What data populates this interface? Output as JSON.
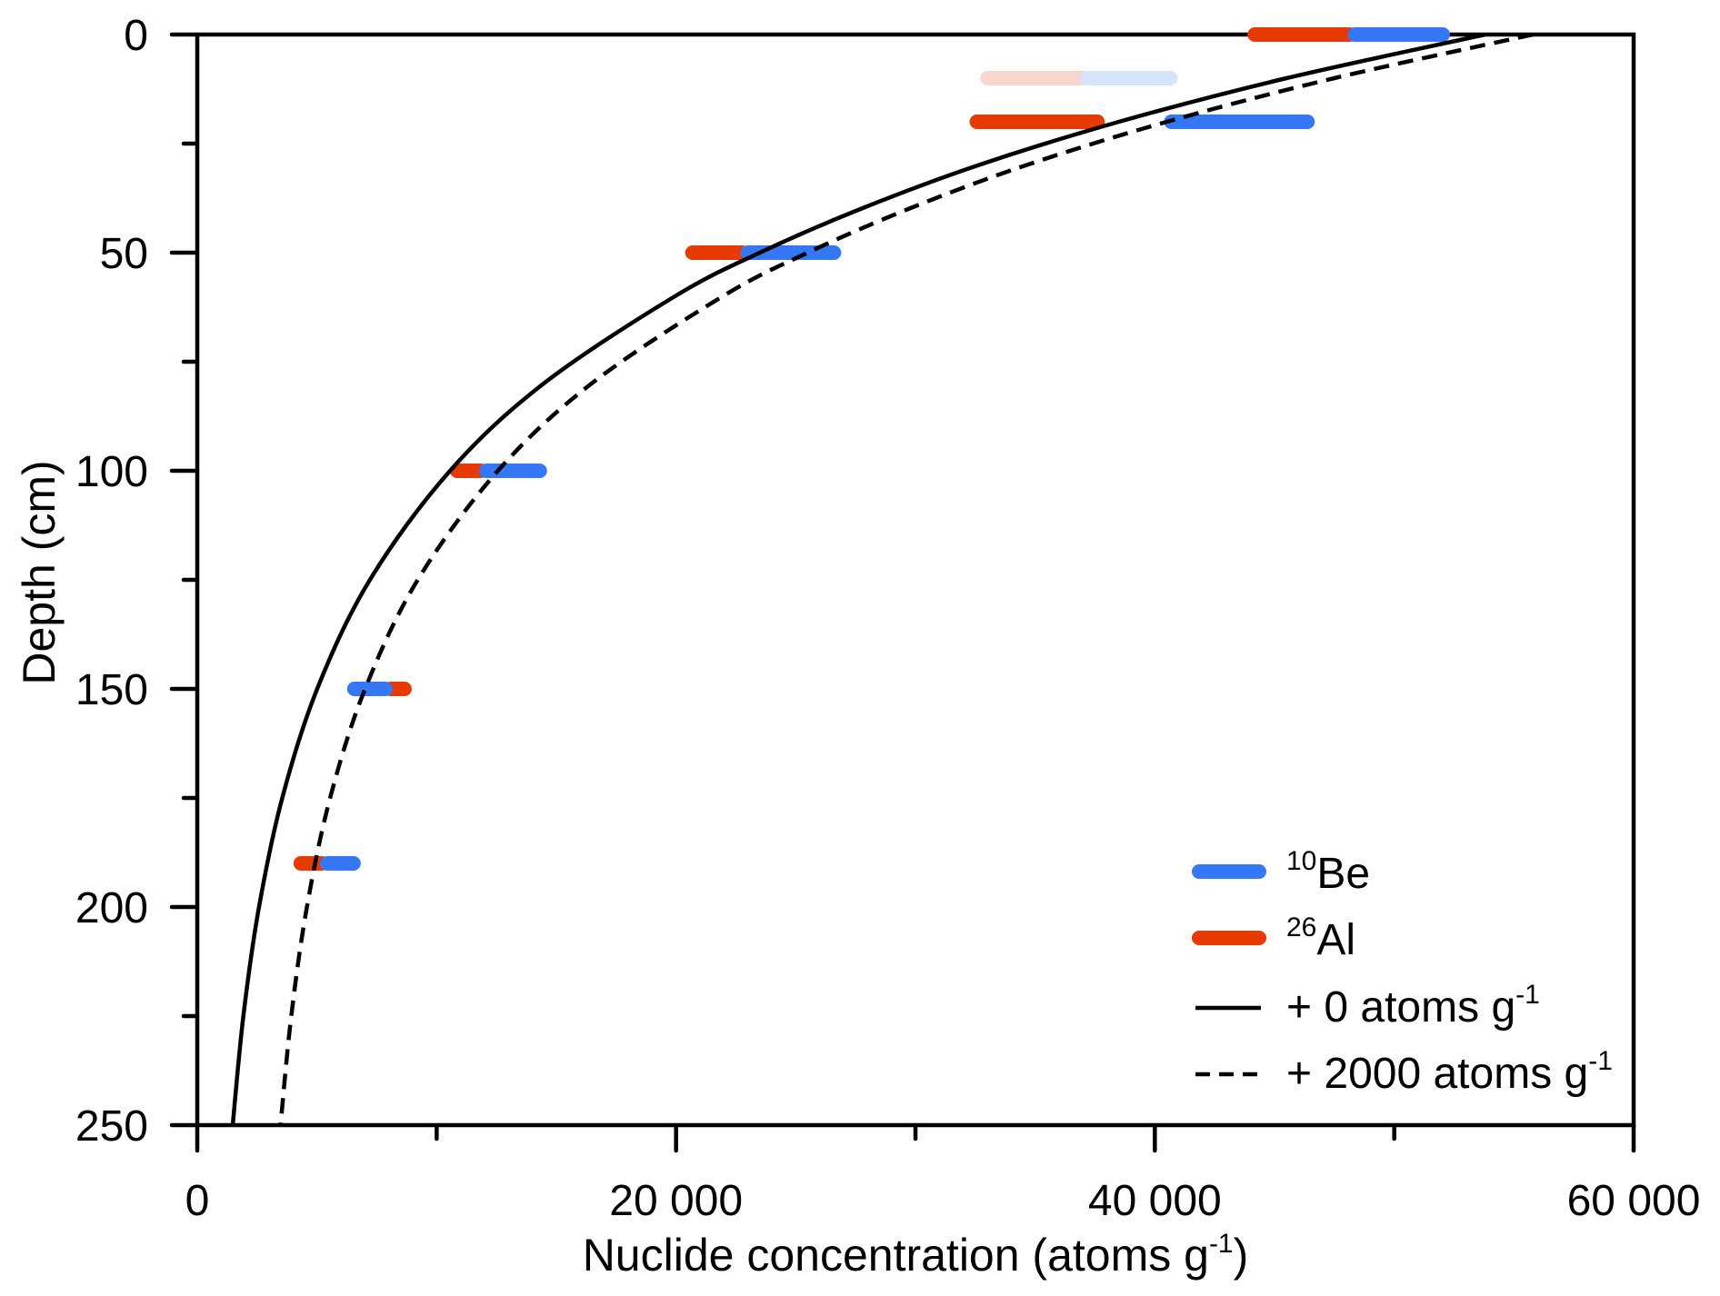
{
  "chart_data": {
    "type": "line",
    "title": "",
    "xlabel_parts": [
      "Nuclide concentration (atoms g",
      "-1",
      ")"
    ],
    "ylabel": "Depth (cm)",
    "xlim": [
      0,
      60000
    ],
    "ylim": [
      0,
      250
    ],
    "y_inverted": true,
    "grid": false,
    "legend_position": "bottom-right",
    "x_ticks": [
      {
        "value": 0,
        "label": "0"
      },
      {
        "value": 20000,
        "label": "20 000"
      },
      {
        "value": 40000,
        "label": "40 000"
      },
      {
        "value": 60000,
        "label": "60 000"
      }
    ],
    "x_minor_ticks": [
      10000,
      30000,
      50000
    ],
    "y_ticks": [
      {
        "value": 0,
        "label": "0"
      },
      {
        "value": 50,
        "label": "50"
      },
      {
        "value": 100,
        "label": "100"
      },
      {
        "value": 150,
        "label": "150"
      },
      {
        "value": 200,
        "label": "200"
      },
      {
        "value": 250,
        "label": "250"
      }
    ],
    "y_minor_ticks": [
      25,
      75,
      125,
      175,
      225
    ],
    "legend": [
      {
        "sup": "10",
        "label": "Be",
        "style": "bar",
        "color": "#3478F6"
      },
      {
        "sup": "26",
        "label": "Al",
        "style": "bar",
        "color": "#E63A00"
      },
      {
        "label": "+ 0 atoms g",
        "sup_after": "-1",
        "style": "solid",
        "color": "#000000"
      },
      {
        "label": "+ 2000 atoms g",
        "sup_after": "-1",
        "style": "dashed",
        "color": "#000000"
      }
    ],
    "measurements": [
      {
        "depth": 0,
        "faded": false,
        "al26": [
          43870,
          48050
        ],
        "be10": [
          48050,
          52330
        ]
      },
      {
        "depth": 10,
        "faded": true,
        "al26": [
          32710,
          36850
        ],
        "be10": [
          36850,
          40950
        ]
      },
      {
        "depth": 20,
        "faded": false,
        "al26": [
          32260,
          37910
        ],
        "be10": [
          40380,
          46680
        ]
      },
      {
        "depth": 50,
        "faded": false,
        "al26": [
          20380,
          22690
        ],
        "be10": [
          22690,
          26900
        ]
      },
      {
        "depth": 100,
        "faded": false,
        "al26": [
          10550,
          11765
        ],
        "be10": [
          11765,
          14610
        ]
      },
      {
        "depth": 150,
        "faded": false,
        "al26": [
          8160,
          8960
        ],
        "be10": [
          6260,
          8160
        ]
      },
      {
        "depth": 190,
        "faded": false,
        "al26": [
          4020,
          5120
        ],
        "be10": [
          5120,
          6830
        ]
      }
    ],
    "curve_depths": [
      0,
      10,
      20,
      30,
      40,
      50,
      60,
      80,
      100,
      125,
      150,
      175,
      200,
      225,
      250
    ],
    "series": [
      {
        "legend_index": 2,
        "style": "solid",
        "values": [
          53800,
          45500,
          38500,
          32600,
          27700,
          23500,
          19950,
          14470,
          10560,
          7210,
          5010,
          3550,
          2580,
          1925,
          1480
        ]
      },
      {
        "legend_index": 3,
        "style": "dashed",
        "values": [
          55800,
          47500,
          40500,
          34600,
          29700,
          25500,
          21950,
          16470,
          12560,
          9210,
          7010,
          5550,
          4580,
          3925,
          3480
        ]
      }
    ]
  },
  "colors": {
    "be10": "#3478F6",
    "al26": "#E63A00",
    "be10_faded": "#D6E4FB",
    "al26_faded": "#F9D6CB",
    "axis": "#000000"
  }
}
